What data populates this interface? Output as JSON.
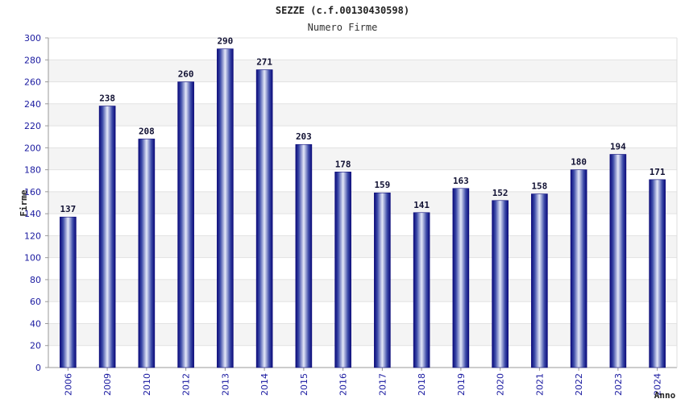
{
  "colors": {
    "bar_dark": "#0a0a7a",
    "bar_mid": "#3c4aa8",
    "bar_light": "#e4e8f8",
    "band": "#f4f4f4",
    "axis": "#999999",
    "tick_text": "#1a1aa0"
  },
  "chart_data": {
    "type": "bar",
    "title": "SEZZE (c.f.00130430598)",
    "subtitle": "Numero Firme",
    "xlabel": "Anno",
    "ylabel": "Firme",
    "ylim": [
      0,
      300
    ],
    "ytick_step": 20,
    "grid": true,
    "categories": [
      "2006",
      "2009",
      "2010",
      "2012",
      "2013",
      "2014",
      "2015",
      "2016",
      "2017",
      "2018",
      "2019",
      "2020",
      "2021",
      "2022",
      "2023",
      "2024"
    ],
    "values": [
      137,
      238,
      208,
      260,
      290,
      271,
      203,
      178,
      159,
      141,
      163,
      152,
      158,
      180,
      194,
      171
    ]
  }
}
